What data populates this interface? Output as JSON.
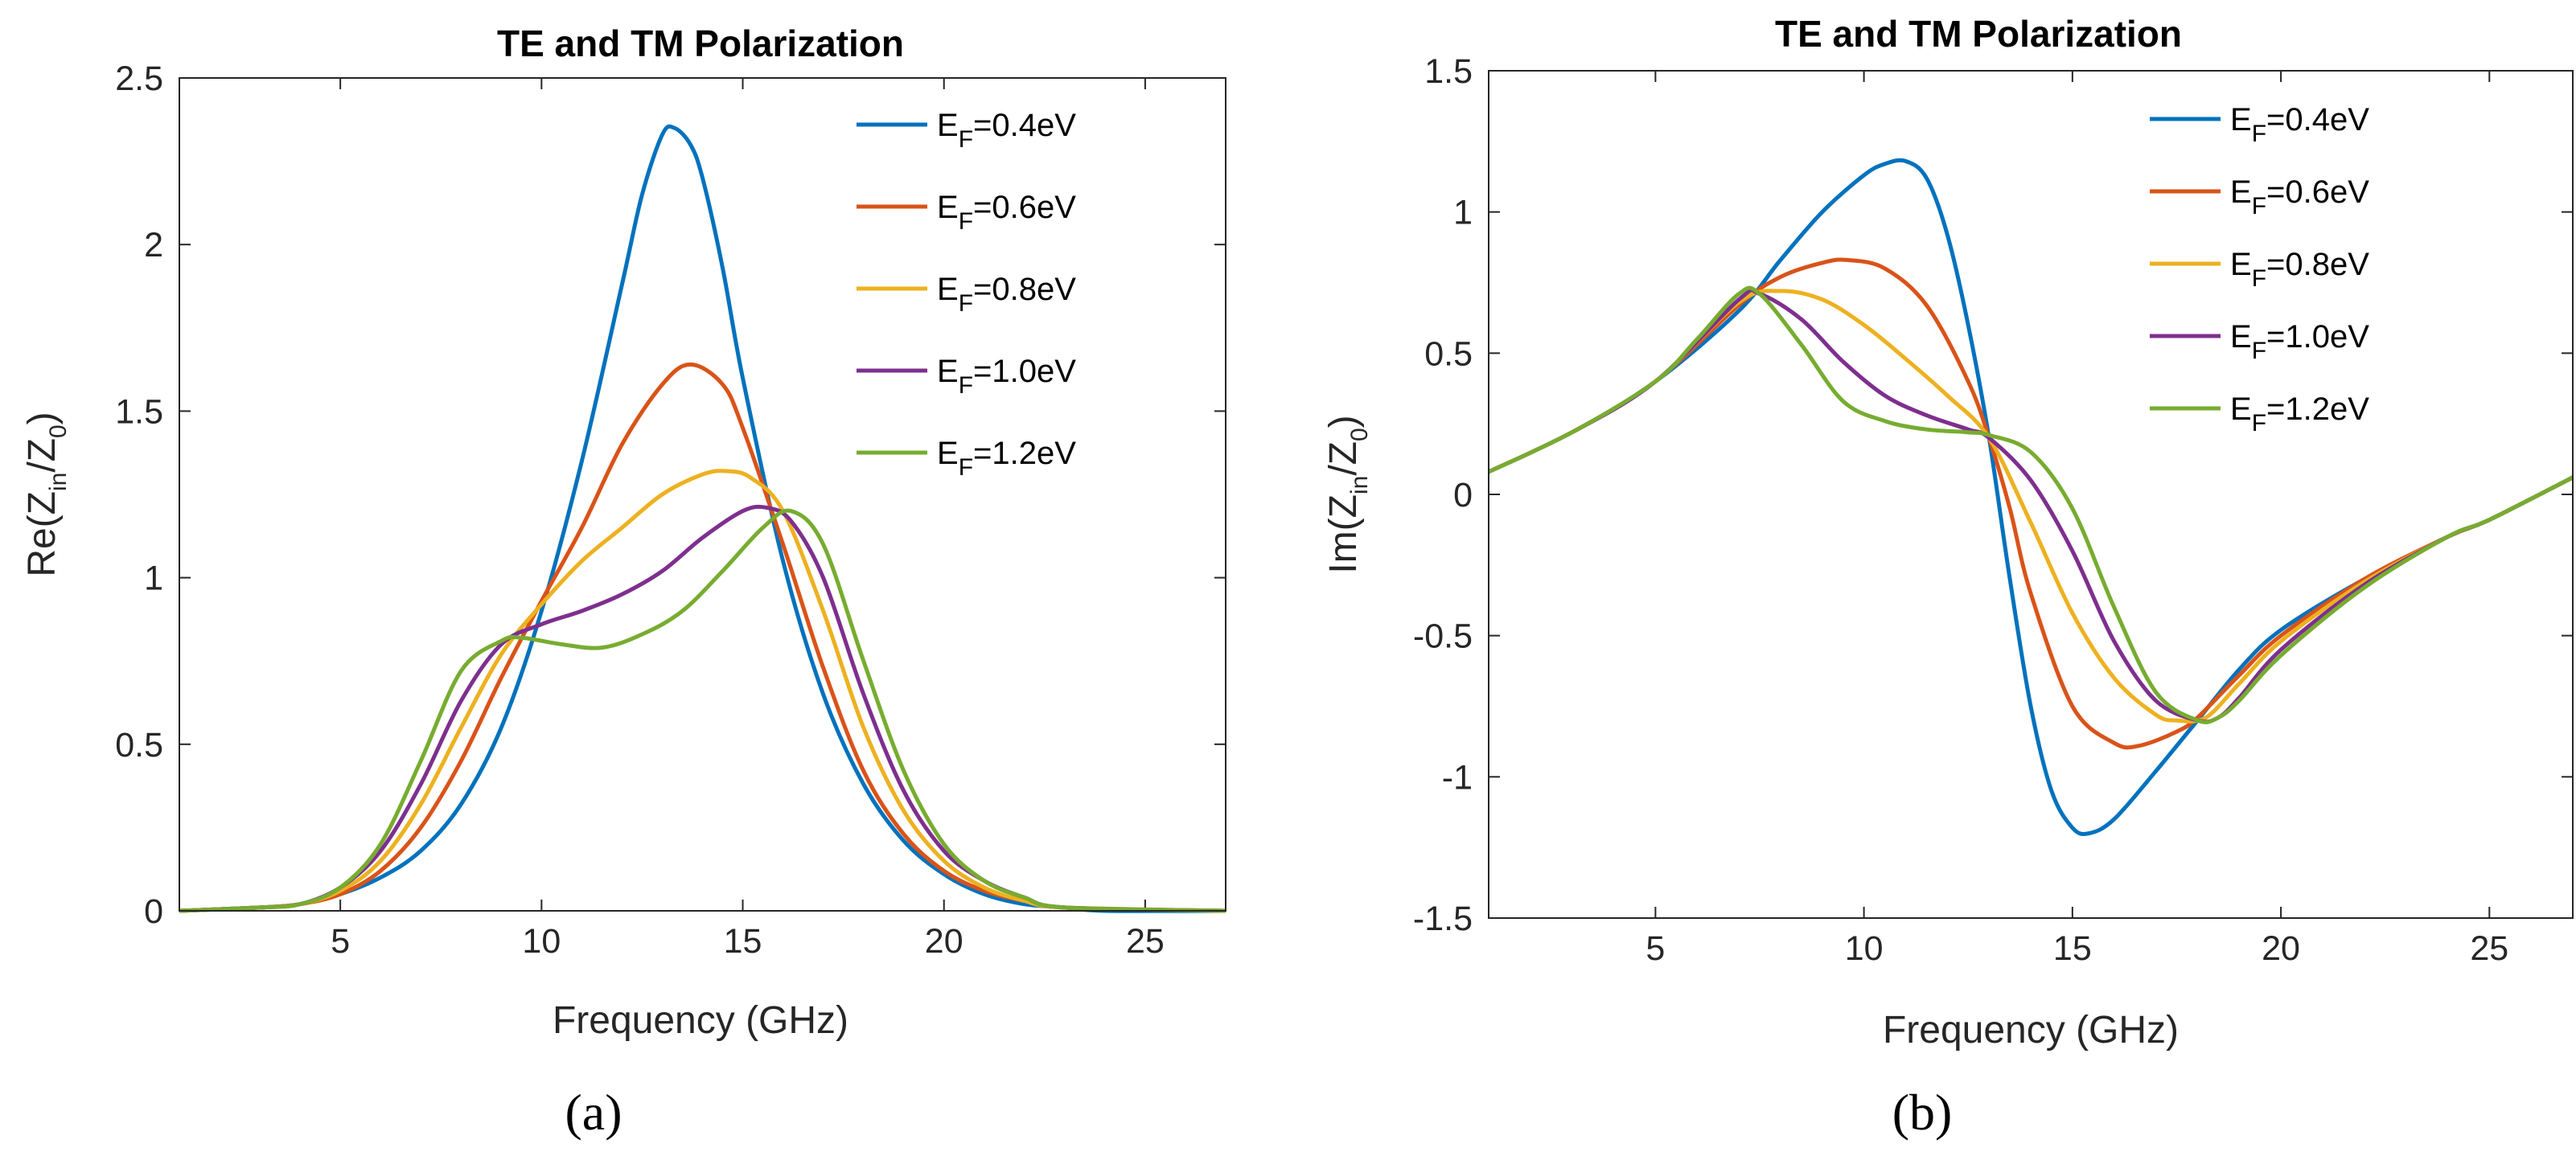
{
  "chart_data": [
    {
      "type": "line",
      "panel_label": "(a)",
      "title": "TE and TM Polarization",
      "xlabel": "Frequency (GHz)",
      "ylabel": {
        "main": "Re(Z",
        "sub1": "in",
        "mid": "/Z",
        "sub2": "0",
        "end": ")"
      },
      "xlim": [
        1,
        27
      ],
      "ylim": [
        0,
        2.5
      ],
      "xticks": [
        5,
        10,
        15,
        20,
        25
      ],
      "yticks": [
        0,
        0.5,
        1,
        1.5,
        2,
        2.5
      ],
      "ytick_labels": [
        "0",
        "0.5",
        "1",
        "1.5",
        "2",
        "2.5"
      ],
      "legend_position": "top-right",
      "series": [
        {
          "name": "E_F=0.4eV",
          "legend": {
            "main": "E",
            "sub": "F",
            "rest": "=0.4eV"
          },
          "color": "#0072BD",
          "x": [
            1,
            3,
            4,
            5,
            6,
            7,
            8,
            9,
            10,
            11,
            12,
            12.5,
            13,
            13.3,
            13.7,
            14,
            14.5,
            15,
            16,
            17,
            18,
            19,
            20,
            21,
            22,
            23,
            24,
            27
          ],
          "y": [
            0,
            0.01,
            0.02,
            0.05,
            0.1,
            0.18,
            0.32,
            0.55,
            0.9,
            1.35,
            1.88,
            2.15,
            2.33,
            2.35,
            2.3,
            2.2,
            1.93,
            1.6,
            1.05,
            0.65,
            0.38,
            0.21,
            0.11,
            0.05,
            0.02,
            0.01,
            0,
            0
          ]
        },
        {
          "name": "E_F=0.6eV",
          "legend": {
            "main": "E",
            "sub": "F",
            "rest": "=0.6eV"
          },
          "color": "#D95319",
          "x": [
            1,
            3,
            4,
            5,
            6,
            7,
            8,
            9,
            10,
            11,
            12,
            13,
            13.7,
            14.5,
            15,
            16,
            17,
            18,
            19,
            20,
            21,
            22,
            23,
            27
          ],
          "y": [
            0,
            0.01,
            0.02,
            0.05,
            0.12,
            0.25,
            0.45,
            0.7,
            0.93,
            1.15,
            1.4,
            1.58,
            1.64,
            1.58,
            1.45,
            1.1,
            0.73,
            0.42,
            0.23,
            0.12,
            0.06,
            0.03,
            0.01,
            0
          ]
        },
        {
          "name": "E_F=0.8eV",
          "legend": {
            "main": "E",
            "sub": "F",
            "rest": "=0.8eV"
          },
          "color": "#EDB120",
          "x": [
            1,
            3,
            4,
            5,
            6,
            7,
            8,
            9,
            10,
            11,
            12,
            13,
            14,
            14.6,
            15.2,
            16,
            17,
            18,
            19,
            20,
            21,
            22,
            23,
            27
          ],
          "y": [
            0,
            0.01,
            0.02,
            0.06,
            0.15,
            0.32,
            0.55,
            0.77,
            0.92,
            1.05,
            1.15,
            1.25,
            1.31,
            1.32,
            1.3,
            1.2,
            0.9,
            0.55,
            0.3,
            0.15,
            0.07,
            0.03,
            0.01,
            0
          ]
        },
        {
          "name": "E_F=1.0eV",
          "legend": {
            "main": "E",
            "sub": "F",
            "rest": "=1.0eV"
          },
          "color": "#7E2F8E",
          "x": [
            1,
            3,
            4,
            5,
            6,
            7,
            8,
            9,
            10,
            11,
            12,
            13,
            14,
            15,
            15.6,
            16.2,
            17,
            18,
            19,
            20,
            21,
            22,
            23,
            27
          ],
          "y": [
            0,
            0.01,
            0.02,
            0.07,
            0.18,
            0.38,
            0.63,
            0.8,
            0.86,
            0.9,
            0.95,
            1.02,
            1.12,
            1.2,
            1.21,
            1.17,
            1.0,
            0.65,
            0.36,
            0.18,
            0.09,
            0.04,
            0.01,
            0
          ]
        },
        {
          "name": "E_F=1.2eV",
          "legend": {
            "main": "E",
            "sub": "F",
            "rest": "=1.2eV"
          },
          "color": "#77AC30",
          "x": [
            1,
            3,
            4,
            5,
            6,
            7,
            8,
            9,
            9.5,
            10.5,
            11.5,
            12.5,
            13.5,
            14.5,
            15.5,
            16.2,
            17,
            18,
            19,
            20,
            21,
            22,
            23,
            27
          ],
          "y": [
            0,
            0.01,
            0.02,
            0.07,
            0.2,
            0.45,
            0.72,
            0.81,
            0.82,
            0.8,
            0.79,
            0.83,
            0.9,
            1.02,
            1.15,
            1.2,
            1.1,
            0.75,
            0.42,
            0.2,
            0.09,
            0.04,
            0.01,
            0
          ]
        }
      ]
    },
    {
      "type": "line",
      "panel_label": "(b)",
      "title": "TE and TM Polarization",
      "xlabel": "Frequency (GHz)",
      "ylabel": {
        "main": "Im(Z",
        "sub1": "in",
        "mid": "/Z",
        "sub2": "0",
        "end": ")"
      },
      "xlim": [
        1,
        27
      ],
      "ylim": [
        -1.5,
        1.5
      ],
      "xticks": [
        5,
        10,
        15,
        20,
        25
      ],
      "yticks": [
        -1.5,
        -1,
        -0.5,
        0,
        0.5,
        1,
        1.5
      ],
      "ytick_labels": [
        "-1.5",
        "-1",
        "-0.5",
        "0",
        "0.5",
        "1",
        "1.5"
      ],
      "legend_position": "top-right",
      "series": [
        {
          "name": "E_F=0.4eV",
          "legend": {
            "main": "E",
            "sub": "F",
            "rest": "=0.4eV"
          },
          "color": "#0072BD",
          "x": [
            1,
            3,
            5,
            7,
            8,
            9,
            10,
            10.5,
            11,
            11.5,
            12,
            12.5,
            13,
            13.5,
            14,
            14.5,
            15,
            15.4,
            16,
            17,
            18,
            19,
            20,
            22,
            24,
            25,
            27
          ],
          "y": [
            0.08,
            0.22,
            0.4,
            0.65,
            0.83,
            1.0,
            1.13,
            1.17,
            1.18,
            1.12,
            0.92,
            0.6,
            0.2,
            -0.3,
            -0.75,
            -1.05,
            -1.18,
            -1.2,
            -1.15,
            -0.98,
            -0.8,
            -0.62,
            -0.48,
            -0.3,
            -0.15,
            -0.09,
            0.06
          ]
        },
        {
          "name": "E_F=0.6eV",
          "legend": {
            "main": "E",
            "sub": "F",
            "rest": "=0.6eV"
          },
          "color": "#D95319",
          "x": [
            1,
            3,
            5,
            7,
            8,
            9,
            9.6,
            10.5,
            11.5,
            12.5,
            13,
            13.5,
            14,
            15,
            16,
            16.6,
            17.5,
            18,
            19,
            20,
            22,
            24,
            25,
            27
          ],
          "y": [
            0.08,
            0.22,
            0.4,
            0.67,
            0.77,
            0.82,
            0.83,
            0.8,
            0.67,
            0.4,
            0.2,
            -0.05,
            -0.35,
            -0.75,
            -0.88,
            -0.89,
            -0.84,
            -0.79,
            -0.64,
            -0.5,
            -0.3,
            -0.15,
            -0.09,
            0.06
          ]
        },
        {
          "name": "E_F=0.8eV",
          "legend": {
            "main": "E",
            "sub": "F",
            "rest": "=0.8eV"
          },
          "color": "#EDB120",
          "x": [
            1,
            3,
            5,
            7,
            8,
            9,
            10,
            11,
            12,
            13,
            14,
            15,
            16,
            17,
            17.5,
            18.2,
            19,
            20,
            22,
            24,
            25,
            27
          ],
          "y": [
            0.08,
            0.22,
            0.4,
            0.68,
            0.72,
            0.69,
            0.6,
            0.48,
            0.35,
            0.2,
            -0.1,
            -0.42,
            -0.65,
            -0.78,
            -0.8,
            -0.79,
            -0.67,
            -0.52,
            -0.31,
            -0.15,
            -0.09,
            0.06
          ]
        },
        {
          "name": "E_F=1.0eV",
          "legend": {
            "main": "E",
            "sub": "F",
            "rest": "=1.0eV"
          },
          "color": "#7E2F8E",
          "x": [
            1,
            3,
            5,
            7,
            7.5,
            8.5,
            9.5,
            10.5,
            11.5,
            12.5,
            13,
            14,
            15,
            16,
            17,
            18,
            18.5,
            19,
            20,
            22,
            24,
            25,
            27
          ],
          "y": [
            0.08,
            0.22,
            0.4,
            0.69,
            0.71,
            0.62,
            0.47,
            0.35,
            0.28,
            0.23,
            0.2,
            0.05,
            -0.2,
            -0.52,
            -0.73,
            -0.8,
            -0.79,
            -0.72,
            -0.55,
            -0.32,
            -0.15,
            -0.09,
            0.06
          ]
        },
        {
          "name": "E_F=1.2eV",
          "legend": {
            "main": "E",
            "sub": "F",
            "rest": "=1.2eV"
          },
          "color": "#77AC30",
          "x": [
            1,
            3,
            5,
            6,
            7,
            7.5,
            8.5,
            9.5,
            10.5,
            11.5,
            12.5,
            13,
            14,
            15,
            16,
            17,
            18,
            18.5,
            19,
            20,
            22,
            24,
            25,
            27
          ],
          "y": [
            0.08,
            0.22,
            0.4,
            0.55,
            0.71,
            0.71,
            0.53,
            0.33,
            0.26,
            0.23,
            0.22,
            0.21,
            0.15,
            -0.05,
            -0.4,
            -0.7,
            -0.8,
            -0.79,
            -0.73,
            -0.57,
            -0.33,
            -0.15,
            -0.09,
            0.06
          ]
        }
      ]
    }
  ]
}
